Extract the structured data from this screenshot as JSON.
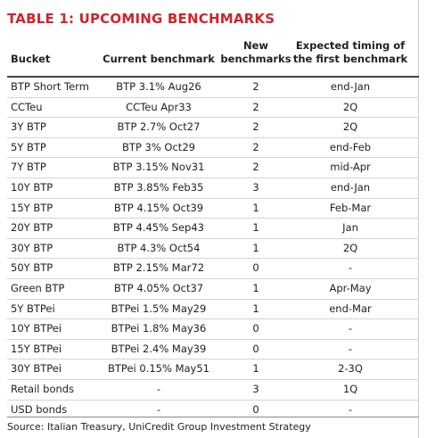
{
  "title": "TABLE 1: UPCOMING BENCHMARKS",
  "table": {
    "header": [
      [
        "Bucket"
      ],
      [
        "Current benchmark"
      ],
      [
        "New",
        "benchmarks"
      ],
      [
        "Expected timing of",
        "the first benchmark"
      ]
    ],
    "rows": [
      [
        "BTP Short Term",
        "BTP 3.1% Aug26",
        "2",
        "end-Jan"
      ],
      [
        "CCTeu",
        "CCTeu Apr33",
        "2",
        "2Q"
      ],
      [
        "3Y BTP",
        "BTP 2.7% Oct27",
        "2",
        "2Q"
      ],
      [
        "5Y BTP",
        "BTP 3% Oct29",
        "2",
        "end-Feb"
      ],
      [
        "7Y BTP",
        "BTP 3.15% Nov31",
        "2",
        "mid-Apr"
      ],
      [
        "10Y BTP",
        "BTP 3.85% Feb35",
        "3",
        "end-Jan"
      ],
      [
        "15Y BTP",
        "BTP 4.15% Oct39",
        "1",
        "Feb-Mar"
      ],
      [
        "20Y BTP",
        "BTP 4.45% Sep43",
        "1",
        "Jan"
      ],
      [
        "30Y BTP",
        "BTP 4.3% Oct54",
        "1",
        "2Q"
      ],
      [
        "50Y BTP",
        "BTP 2.15% Mar72",
        "0",
        "-"
      ],
      [
        "Green BTP",
        "BTP 4.05% Oct37",
        "1",
        "Apr-May"
      ],
      [
        "5Y BTPei",
        "BTPei 1.5% May29",
        "1",
        "end-Mar"
      ],
      [
        "10Y BTPei",
        "BTPei 1.8% May36",
        "0",
        "-"
      ],
      [
        "15Y BTPei",
        "BTPei 2.4% May39",
        "0",
        "-"
      ],
      [
        "30Y BTPei",
        "BTPei 0.15% May51",
        "1",
        "2-3Q"
      ],
      [
        "Retail bonds",
        "-",
        "3",
        "1Q"
      ],
      [
        "USD bonds",
        "-",
        "0",
        "-"
      ]
    ]
  },
  "source": "Source: Italian Treasury, UniCredit Group Investment Strategy"
}
